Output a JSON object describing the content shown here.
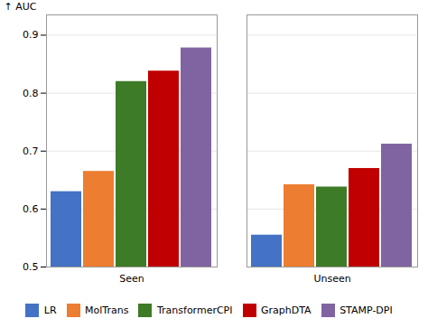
{
  "chart_data": {
    "type": "bar",
    "categories": [
      "Seen",
      "Unseen"
    ],
    "series": [
      {
        "name": "LR",
        "color": "#4472C4",
        "values": [
          0.63,
          0.555
        ]
      },
      {
        "name": "MolTrans",
        "color": "#ED7D31",
        "values": [
          0.665,
          0.642
        ]
      },
      {
        "name": "TransformerCPI",
        "color": "#3E7B27",
        "values": [
          0.82,
          0.638
        ]
      },
      {
        "name": "GraphDTA",
        "color": "#C00000",
        "values": [
          0.838,
          0.67
        ]
      },
      {
        "name": "STAMP-DPI",
        "color": "#8064A2",
        "values": [
          0.878,
          0.712
        ]
      }
    ],
    "ylabel": "AUC",
    "ylim": [
      0.5,
      0.935
    ],
    "yticks": [
      0.5,
      0.6,
      0.7,
      0.8,
      0.9
    ],
    "grid": true,
    "legend": "bottom"
  }
}
